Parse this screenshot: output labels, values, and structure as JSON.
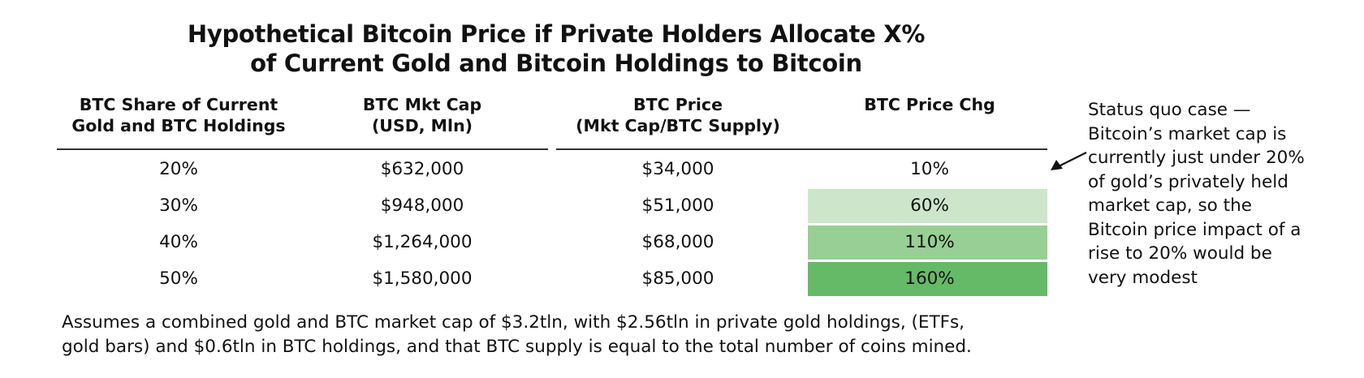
{
  "title": {
    "line1": "Hypothetical Bitcoin Price if Private Holders Allocate X%",
    "line2": "of Current Gold and Bitcoin Holdings to Bitcoin"
  },
  "columns": [
    {
      "line1": "BTC Share of Current",
      "line2": "Gold and BTC Holdings"
    },
    {
      "line1": "BTC Mkt Cap",
      "line2": "(USD, Mln)"
    },
    {
      "line1": "BTC Price",
      "line2": "(Mkt Cap/BTC Supply)"
    },
    {
      "line1": "BTC Price Chg",
      "line2": ""
    }
  ],
  "chart_data": {
    "type": "table",
    "title": "Hypothetical Bitcoin Price if Private Holders Allocate X% of Current Gold and Bitcoin Holdings to Bitcoin",
    "headers": [
      "BTC Share of Current Gold and BTC Holdings",
      "BTC Mkt Cap (USD, Mln)",
      "BTC Price (Mkt Cap/BTC Supply)",
      "BTC Price Chg"
    ],
    "rows": [
      {
        "share": "20%",
        "mkt_cap": "$632,000",
        "price": "$34,000",
        "chg": "10%",
        "chg_value": 10
      },
      {
        "share": "30%",
        "mkt_cap": "$948,000",
        "price": "$51,000",
        "chg": "60%",
        "chg_value": 60
      },
      {
        "share": "40%",
        "mkt_cap": "$1,264,000",
        "price": "$68,000",
        "chg": "110%",
        "chg_value": 110
      },
      {
        "share": "50%",
        "mkt_cap": "$1,580,000",
        "price": "$85,000",
        "chg": "160%",
        "chg_value": 160
      }
    ],
    "highlight_colors": [
      "#ffffff",
      "#cde6cb",
      "#97cf94",
      "#65ba68"
    ]
  },
  "annotation": {
    "lines": [
      "Status quo case —",
      "Bitcoin’s market cap is",
      "currently just under 20%",
      "of gold’s privately held",
      "market cap, so the",
      "Bitcoin price impact of a",
      "rise to 20% would be",
      "very modest"
    ]
  },
  "footnote": {
    "line1": "Assumes a combined gold and BTC market cap of $3.2tln, with $2.56tln in private gold holdings, (ETFs,",
    "line2": "gold bars) and $0.6tln in BTC holdings, and that BTC supply is equal to the total number of coins mined."
  },
  "icons": {
    "annotation_arrow": "arrow-left-down-icon"
  }
}
